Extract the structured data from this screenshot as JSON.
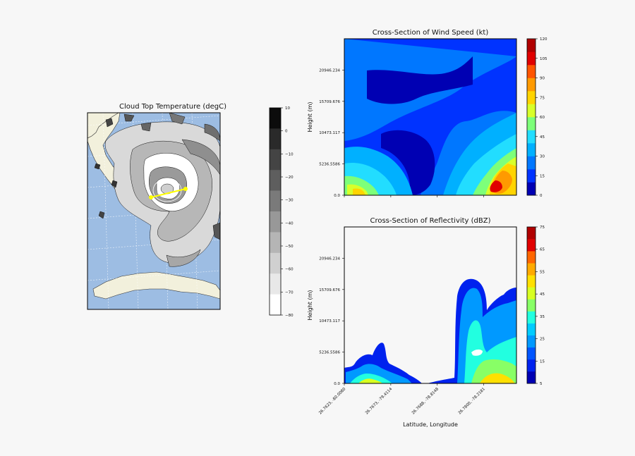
{
  "chart_data": [
    {
      "type": "heatmap",
      "title": "Cloud Top Temperature (degC)",
      "colorbar": {
        "ticks": [
          "10",
          "0",
          "−10",
          "−20",
          "−30",
          "−40",
          "−50",
          "−60",
          "−70",
          "−80"
        ],
        "values": [
          10,
          0,
          -10,
          -20,
          -30,
          -40,
          -50,
          -60,
          -70,
          -80
        ],
        "colors": [
          "#0c0c0c",
          "#2a2a2a",
          "#444444",
          "#5e5e5e",
          "#7a7a7a",
          "#989898",
          "#b5b5b5",
          "#d0d0d0",
          "#e8e8e8",
          "#ffffff"
        ]
      },
      "map": {
        "ocean_color": "#9dbde3",
        "land_color": "#f2f0dc",
        "cross_section_line_color": "#ffff00"
      }
    },
    {
      "type": "heatmap",
      "title": "Cross-Section of Wind Speed (kt)",
      "ylabel": "Height (m)",
      "ylim": [
        0,
        26183.0
      ],
      "yticks": [
        "0.0",
        "5236.5586",
        "10473.117",
        "15709.676",
        "20946.234"
      ],
      "ytick_values": [
        0,
        5236.5586,
        10473.117,
        15709.676,
        20946.234
      ],
      "colorbar": {
        "ticks": [
          "0",
          "15",
          "30",
          "45",
          "60",
          "75",
          "90",
          "105",
          "120"
        ],
        "values": [
          0,
          15,
          30,
          45,
          60,
          75,
          90,
          105,
          120
        ],
        "colors": [
          "#0000b3",
          "#0033ff",
          "#0077ff",
          "#00b0ff",
          "#22ddff",
          "#7dff7a",
          "#d8ff2a",
          "#ffd400",
          "#ff9a00",
          "#ff5500",
          "#e00000",
          "#b00000"
        ]
      }
    },
    {
      "type": "heatmap",
      "title": "Cross-Section of Reflectivity (dBZ)",
      "xlabel": "Latitude, Longitude",
      "ylabel": "Height (m)",
      "ylim": [
        0,
        26183.0
      ],
      "yticks": [
        "0.0",
        "5236.5586",
        "10473.117",
        "15709.676",
        "20946.234"
      ],
      "ytick_values": [
        0,
        5236.5586,
        10473.117,
        15709.676,
        20946.234
      ],
      "xticks": [
        "26.7623, -80.0080",
        "26.7673, -79.4114",
        "26.7688, -78.8148",
        "26.7800, -78.2181"
      ],
      "colorbar": {
        "ticks": [
          "5",
          "15",
          "25",
          "35",
          "45",
          "55",
          "65",
          "75"
        ],
        "values": [
          5,
          15,
          25,
          35,
          45,
          55,
          65,
          75
        ],
        "colors": [
          "#0000b3",
          "#0022ee",
          "#0055ff",
          "#0099ff",
          "#00ccff",
          "#22ffe0",
          "#88ff66",
          "#d8ff22",
          "#ffe000",
          "#ffaa00",
          "#ff6600",
          "#e00000",
          "#b00000"
        ]
      }
    }
  ]
}
